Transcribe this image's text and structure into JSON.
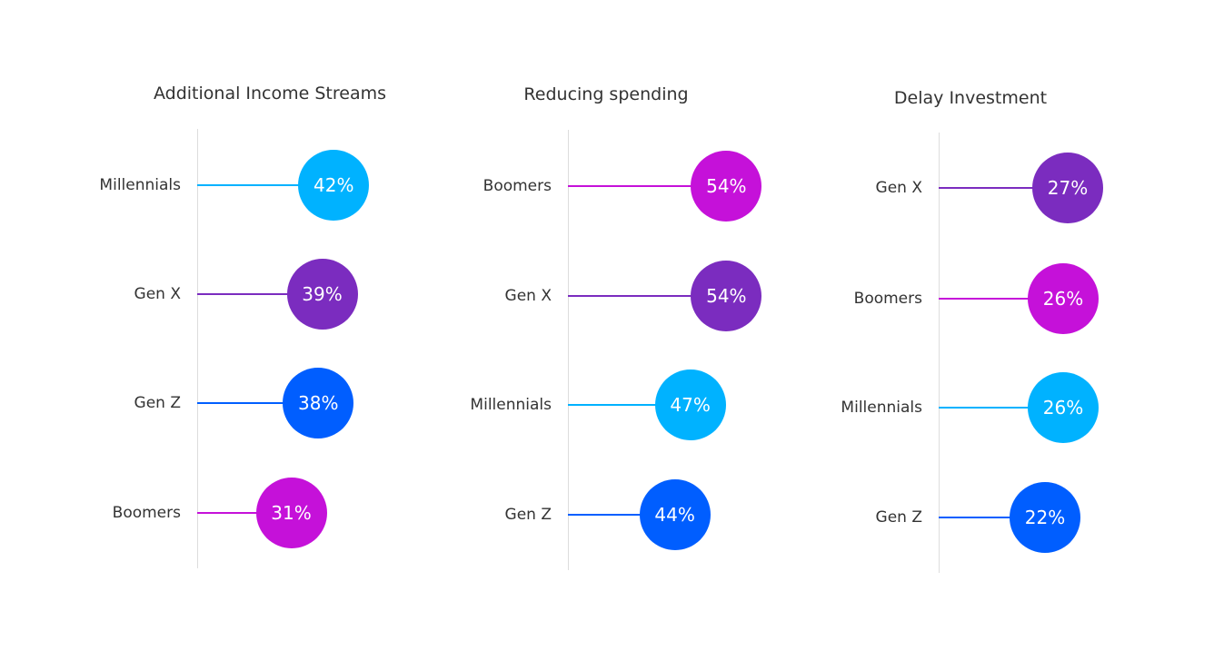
{
  "colors": {
    "Millennials": "#00B2FF",
    "Gen X": "#7B2CBF",
    "Gen Z": "#005EFF",
    "Boomers": "#C511D9"
  },
  "chart_data": [
    {
      "type": "dot",
      "title": "Additional Income Streams",
      "categories": [
        "Millennials",
        "Gen X",
        "Gen Z",
        "Boomers"
      ],
      "values": [
        42,
        39,
        38,
        31
      ],
      "labels": [
        "42%",
        "39%",
        "38%",
        "31%"
      ]
    },
    {
      "type": "dot",
      "title": "Reducing spending",
      "categories": [
        "Boomers",
        "Gen X",
        "Millennials",
        "Gen Z"
      ],
      "values": [
        54,
        54,
        47,
        44
      ],
      "labels": [
        "54%",
        "54%",
        "47%",
        "44%"
      ]
    },
    {
      "type": "dot",
      "title": "Delay Investment",
      "categories": [
        "Gen X",
        "Boomers",
        "Millennials",
        "Gen Z"
      ],
      "values": [
        27,
        26,
        26,
        22
      ],
      "labels": [
        "27%",
        "26%",
        "26%",
        "22%"
      ]
    }
  ]
}
